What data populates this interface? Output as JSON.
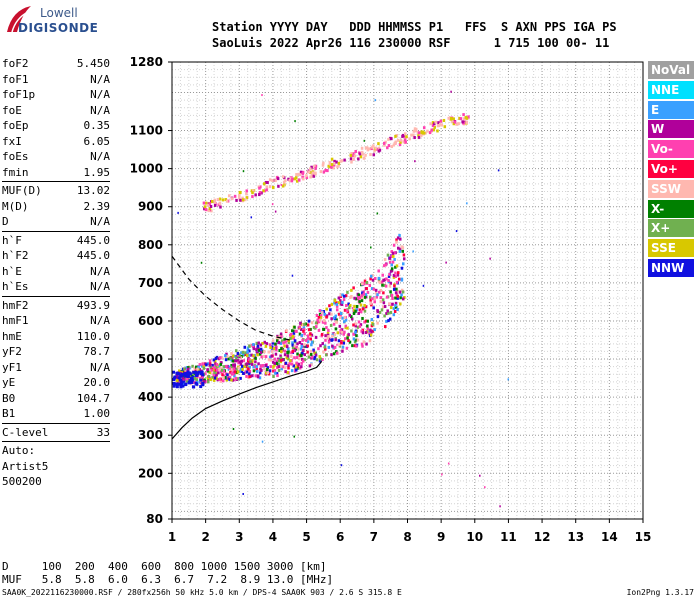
{
  "logo": {
    "top": "Lowell",
    "bottom": "DIGISONDE"
  },
  "header": {
    "line1": "Station YYYY DAY   DDD HHMMSS P1   FFS  S AXN PPS IGA PS",
    "line2": "SaoLuis 2022 Apr26 116 230000 RSF      1 715 100 00- 11"
  },
  "params": [
    [
      {
        "label": "foF2",
        "value": "5.450"
      },
      {
        "label": "foF1",
        "value": "N/A"
      },
      {
        "label": "foF1p",
        "value": "N/A"
      },
      {
        "label": "foE",
        "value": "N/A"
      },
      {
        "label": "foEp",
        "value": "0.35"
      },
      {
        "label": "fxI",
        "value": "6.05"
      },
      {
        "label": "foEs",
        "value": "N/A"
      },
      {
        "label": "fmin",
        "value": "1.95"
      }
    ],
    [
      {
        "label": "MUF(D)",
        "value": "13.02"
      },
      {
        "label": "M(D)",
        "value": "2.39"
      },
      {
        "label": "D",
        "value": "N/A"
      }
    ],
    [
      {
        "label": "h`F",
        "value": "445.0"
      },
      {
        "label": "h`F2",
        "value": "445.0"
      },
      {
        "label": "h`E",
        "value": "N/A"
      },
      {
        "label": "h`Es",
        "value": "N/A"
      }
    ],
    [
      {
        "label": "hmF2",
        "value": "493.9"
      },
      {
        "label": "hmF1",
        "value": "N/A"
      },
      {
        "label": "hmE",
        "value": "110.0"
      },
      {
        "label": "yF2",
        "value": "78.7"
      },
      {
        "label": "yF1",
        "value": "N/A"
      },
      {
        "label": "yE",
        "value": "20.0"
      },
      {
        "label": "B0",
        "value": "104.7"
      },
      {
        "label": "B1",
        "value": "1.00"
      }
    ],
    [
      {
        "label": "C-level",
        "value": "33"
      }
    ]
  ],
  "auto": [
    "Auto:",
    "Artist5",
    "500200"
  ],
  "legend": [
    {
      "label": "NoVal",
      "color": "#a0a0a0"
    },
    {
      "label": "NNE",
      "color": "#00e0ff"
    },
    {
      "label": "E",
      "color": "#3aa0ff"
    },
    {
      "label": "W",
      "color": "#b0009a"
    },
    {
      "label": "Vo-",
      "color": "#ff40b0"
    },
    {
      "label": "Vo+",
      "color": "#ff0040"
    },
    {
      "label": "SSW",
      "color": "#ffb8b0"
    },
    {
      "label": "X-",
      "color": "#008000"
    },
    {
      "label": "X+",
      "color": "#70b050"
    },
    {
      "label": "SSE",
      "color": "#d8c800"
    },
    {
      "label": "NNW",
      "color": "#1010e0"
    }
  ],
  "dmuf": {
    "line1": "D     100  200  400  600  800 1000 1500 3000 [km]",
    "line2": "MUF   5.8  5.8  6.0  6.3  6.7  7.2  8.9 13.0 [MHz]"
  },
  "footer": "SAA0K_2022116230000.RSF / 280fx256h 50 kHz 5.0 km / DPS-4 SAA0K 903 / 2.6 S 315.8 E",
  "version": "Ion2Png 1.3.17",
  "chart_data": {
    "type": "scatter",
    "xlabel": "",
    "ylabel": "",
    "xlim": [
      1,
      15
    ],
    "ylim": [
      80,
      1280
    ],
    "x_ticks": [
      "1",
      "2",
      "3",
      "4",
      "5",
      "6",
      "7",
      "8",
      "9",
      "10",
      "11",
      "12",
      "13",
      "14",
      "15"
    ],
    "y_ticks": [
      "80",
      "200",
      "300",
      "400",
      "500",
      "600",
      "700",
      "800",
      "900",
      "1000",
      "1100",
      "1280"
    ],
    "grid": true,
    "legend_placement": "right",
    "o_trace_bands": [
      {
        "name": "F-layer o-trace",
        "x": [
          1.1,
          2.0,
          3.0,
          4.0,
          5.0,
          5.5,
          6.0,
          6.5,
          7.0,
          7.5,
          7.9
        ],
        "y": [
          455,
          470,
          490,
          510,
          545,
          575,
          600,
          615,
          640,
          700,
          760
        ]
      },
      {
        "name": "multi-hop trace",
        "x": [
          1.9,
          3.0,
          4.0,
          5.0,
          6.0,
          7.0,
          8.0,
          9.0,
          9.8
        ],
        "y": [
          900,
          930,
          965,
          990,
          1025,
          1055,
          1090,
          1120,
          1135
        ]
      }
    ],
    "profile_line": {
      "name": "electron density profile",
      "x": [
        1.0,
        1.3,
        1.6,
        2.0,
        2.5,
        3.0,
        3.5,
        4.0,
        4.5,
        5.0,
        5.3,
        5.45
      ],
      "y": [
        290,
        320,
        345,
        370,
        390,
        408,
        425,
        440,
        455,
        468,
        478,
        493.9
      ]
    },
    "dashed_line": {
      "name": "x-trace fit",
      "x": [
        1.0,
        1.5,
        2.0,
        2.5,
        3.0,
        3.5,
        4.0,
        4.5
      ],
      "y": [
        770,
        710,
        665,
        630,
        600,
        575,
        560,
        550
      ]
    }
  }
}
